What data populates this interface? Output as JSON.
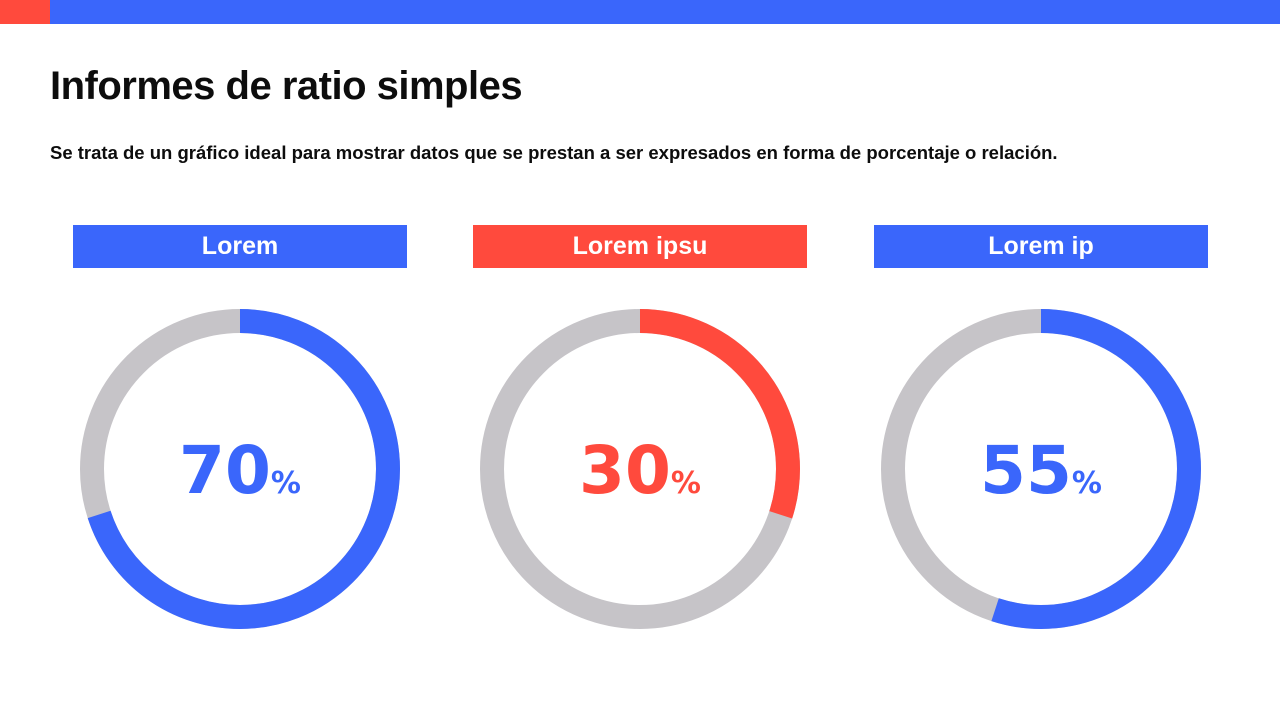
{
  "header": {
    "title": "Informes de ratio simples",
    "subtitle": "Se trata de un gráfico ideal para mostrar datos que se prestan a ser expresados en forma de porcentaje o relación."
  },
  "colors": {
    "blue": "#3a66fb",
    "red": "#ff4a3d",
    "track": "#c6c4c8"
  },
  "chart_data": [
    {
      "type": "pie",
      "label": "Lorem",
      "value": 70,
      "unit": "%",
      "color": "#3a66fb"
    },
    {
      "type": "pie",
      "label": "Lorem ipsu",
      "value": 30,
      "unit": "%",
      "color": "#ff4a3d"
    },
    {
      "type": "pie",
      "label": "Lorem ip",
      "value": 55,
      "unit": "%",
      "color": "#3a66fb"
    }
  ]
}
